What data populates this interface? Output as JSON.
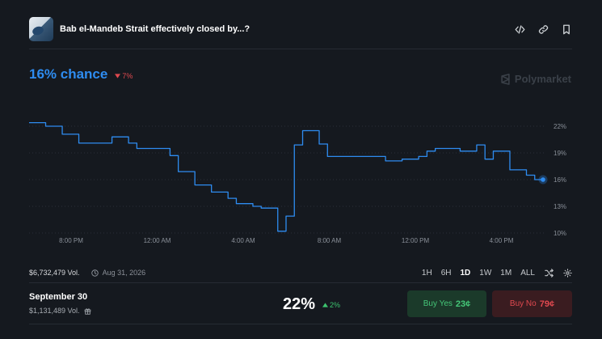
{
  "header": {
    "title": "Bab el-Mandeb Strait effectively closed by...?",
    "icons": [
      "embed-icon",
      "link-icon",
      "bookmark-icon"
    ]
  },
  "summary": {
    "chance": "16% chance",
    "delta": "7%",
    "delta_direction": "down",
    "brand": "Polymarket"
  },
  "chart_data": {
    "type": "line",
    "x_ticks": [
      "8:00 PM",
      "12:00 AM",
      "4:00 AM",
      "8:00 AM",
      "12:00 PM",
      "4:00 PM"
    ],
    "y_ticks": [
      "22%",
      "19%",
      "16%",
      "13%",
      "10%"
    ],
    "ylim": [
      10,
      22
    ],
    "grid": true,
    "color": "#2e8cf0",
    "series": [
      {
        "values": [
          22.4,
          22.4,
          22.0,
          22.0,
          21.1,
          21.1,
          20.1,
          20.1,
          20.1,
          20.1,
          20.8,
          20.8,
          20.1,
          19.5,
          19.5,
          19.5,
          19.5,
          18.7,
          16.9,
          16.9,
          15.4,
          15.4,
          14.6,
          14.6,
          13.9,
          13.3,
          13.3,
          13.0,
          12.8,
          12.8,
          10.2,
          11.9,
          19.9,
          21.5,
          21.5,
          20.0,
          18.6,
          18.6,
          18.6,
          18.6,
          18.6,
          18.6,
          18.6,
          18.1,
          18.1,
          18.3,
          18.3,
          18.6,
          19.2,
          19.5,
          19.5,
          19.5,
          19.2,
          19.2,
          19.9,
          18.3,
          19.2,
          19.2,
          17.1,
          17.1,
          16.5,
          16.0,
          16.0
        ]
      }
    ]
  },
  "stats": {
    "volume": "$6,732,479 Vol.",
    "end_date": "Aug 31, 2026",
    "ranges": [
      "1H",
      "6H",
      "1D",
      "1W",
      "1M",
      "ALL"
    ],
    "active_range": "1D"
  },
  "market": {
    "name": "September 30",
    "volume": "$1,131,489 Vol.",
    "percent": "22%",
    "delta": "2%",
    "delta_direction": "up",
    "buy_yes_label": "Buy Yes",
    "buy_yes_price": "23¢",
    "buy_no_label": "Buy No",
    "buy_no_price": "79¢"
  }
}
